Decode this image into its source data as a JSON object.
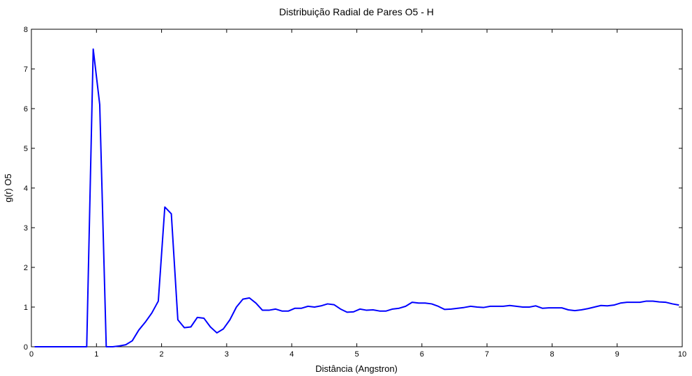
{
  "chart_data": {
    "type": "line",
    "title": "Distribuição Radial de Pares O5 - H",
    "xlabel": "Distância (Angstron)",
    "ylabel": "g(r) O5",
    "x": [
      0.05,
      0.15,
      0.25,
      0.35,
      0.45,
      0.55,
      0.65,
      0.75,
      0.85,
      0.95,
      1.05,
      1.15,
      1.25,
      1.35,
      1.45,
      1.55,
      1.65,
      1.75,
      1.85,
      1.95,
      2.05,
      2.15,
      2.25,
      2.35,
      2.45,
      2.55,
      2.65,
      2.75,
      2.85,
      2.95,
      3.05,
      3.15,
      3.25,
      3.35,
      3.45,
      3.55,
      3.65,
      3.75,
      3.85,
      3.95,
      4.05,
      4.15,
      4.25,
      4.35,
      4.45,
      4.55,
      4.65,
      4.75,
      4.85,
      4.95,
      5.05,
      5.15,
      5.25,
      5.35,
      5.45,
      5.55,
      5.65,
      5.75,
      5.85,
      5.95,
      6.05,
      6.15,
      6.25,
      6.35,
      6.45,
      6.55,
      6.65,
      6.75,
      6.85,
      6.95,
      7.05,
      7.15,
      7.25,
      7.35,
      7.45,
      7.55,
      7.65,
      7.75,
      7.85,
      7.95,
      8.05,
      8.15,
      8.25,
      8.35,
      8.45,
      8.55,
      8.65,
      8.75,
      8.85,
      8.95,
      9.05,
      9.15,
      9.25,
      9.35,
      9.45,
      9.55,
      9.65,
      9.75,
      9.85,
      9.95
    ],
    "series": [
      {
        "name": "g(r) O5",
        "color": "#0000ff",
        "values": [
          0,
          0,
          0,
          0,
          0,
          0,
          0,
          0,
          0,
          7.5,
          6.1,
          0,
          0,
          0.02,
          0.05,
          0.15,
          0.42,
          0.62,
          0.85,
          1.15,
          3.52,
          3.35,
          0.68,
          0.48,
          0.5,
          0.74,
          0.72,
          0.5,
          0.35,
          0.45,
          0.68,
          1.0,
          1.2,
          1.23,
          1.1,
          0.92,
          0.92,
          0.95,
          0.9,
          0.9,
          0.97,
          0.97,
          1.02,
          1.0,
          1.03,
          1.08,
          1.06,
          0.95,
          0.87,
          0.88,
          0.95,
          0.92,
          0.93,
          0.9,
          0.9,
          0.95,
          0.97,
          1.02,
          1.12,
          1.1,
          1.1,
          1.08,
          1.02,
          0.94,
          0.95,
          0.97,
          0.99,
          1.02,
          1.0,
          0.99,
          1.02,
          1.02,
          1.02,
          1.04,
          1.02,
          1.0,
          1.0,
          1.03,
          0.97,
          0.98,
          0.98,
          0.98,
          0.93,
          0.91,
          0.93,
          0.96,
          1.0,
          1.04,
          1.03,
          1.05,
          1.1,
          1.12,
          1.12,
          1.12,
          1.15,
          1.15,
          1.13,
          1.12,
          1.08,
          1.05
        ]
      }
    ],
    "xlim": [
      0,
      10
    ],
    "xticks": [
      0,
      1,
      2,
      3,
      4,
      5,
      6,
      7,
      8,
      9,
      10
    ],
    "ylim": [
      0,
      8
    ],
    "yticks": [
      0,
      1,
      2,
      3,
      4,
      5,
      6,
      7,
      8
    ]
  }
}
